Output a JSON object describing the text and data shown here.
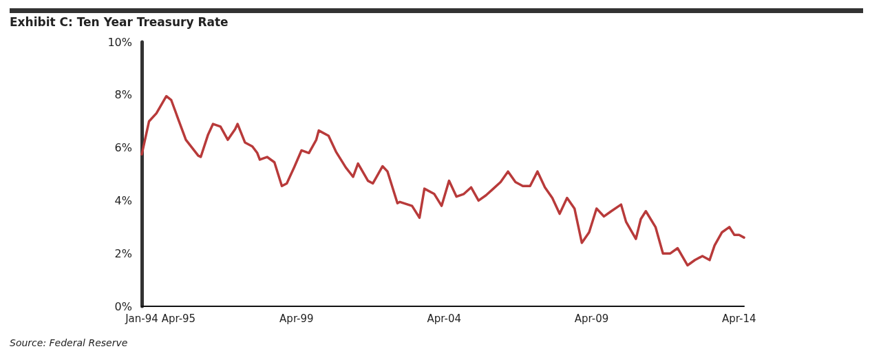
{
  "chart_data": {
    "type": "line",
    "title": "Exhibit C: Ten Year Treasury Rate",
    "annotations": [
      "Source: Federal Reserve"
    ],
    "x": [
      "1994-01",
      "1994-04",
      "1994-07",
      "1994-11",
      "1995-01",
      "1995-04",
      "1995-07",
      "1995-12",
      "1996-01",
      "1996-04",
      "1996-06",
      "1996-09",
      "1996-12",
      "1997-03",
      "1997-04",
      "1997-07",
      "1997-10",
      "1997-12",
      "1998-01",
      "1998-04",
      "1998-07",
      "1998-10",
      "1998-12",
      "1999-03",
      "1999-06",
      "1999-09",
      "1999-12",
      "2000-01",
      "2000-05",
      "2000-08",
      "2000-12",
      "2001-03",
      "2001-05",
      "2001-09",
      "2001-11",
      "2002-03",
      "2002-05",
      "2002-09",
      "2002-10",
      "2003-03",
      "2003-06",
      "2003-08",
      "2003-12",
      "2004-03",
      "2004-06",
      "2004-09",
      "2004-12",
      "2005-03",
      "2005-06",
      "2005-09",
      "2005-12",
      "2006-03",
      "2006-06",
      "2006-09",
      "2006-12",
      "2007-03",
      "2007-06",
      "2007-09",
      "2007-12",
      "2008-03",
      "2008-06",
      "2008-09",
      "2008-12",
      "2009-03",
      "2009-06",
      "2009-09",
      "2009-12",
      "2010-04",
      "2010-06",
      "2010-10",
      "2010-12",
      "2011-02",
      "2011-06",
      "2011-09",
      "2011-12",
      "2012-03",
      "2012-07",
      "2012-10",
      "2013-01",
      "2013-04",
      "2013-06",
      "2013-09",
      "2013-12",
      "2014-02",
      "2014-04",
      "2014-06"
    ],
    "series": [
      {
        "color": "#b83a3a",
        "values": [
          5.75,
          7.0,
          7.3,
          7.95,
          7.8,
          7.05,
          6.3,
          5.7,
          5.65,
          6.5,
          6.9,
          6.8,
          6.3,
          6.7,
          6.9,
          6.2,
          6.05,
          5.8,
          5.55,
          5.65,
          5.45,
          4.55,
          4.65,
          5.25,
          5.9,
          5.8,
          6.3,
          6.65,
          6.45,
          5.85,
          5.25,
          4.9,
          5.4,
          4.75,
          4.65,
          5.3,
          5.1,
          3.9,
          3.95,
          3.8,
          3.35,
          4.45,
          4.25,
          3.8,
          4.75,
          4.15,
          4.25,
          4.5,
          4.0,
          4.2,
          4.45,
          4.7,
          5.1,
          4.7,
          4.55,
          4.55,
          5.1,
          4.5,
          4.1,
          3.5,
          4.1,
          3.7,
          2.4,
          2.8,
          3.7,
          3.4,
          3.6,
          3.85,
          3.2,
          2.55,
          3.3,
          3.6,
          3.0,
          2.0,
          2.0,
          2.2,
          1.55,
          1.75,
          1.9,
          1.75,
          2.3,
          2.8,
          3.0,
          2.7,
          2.7,
          2.6
        ]
      }
    ],
    "xlim": [
      "1994-01",
      "2014-06"
    ],
    "xticks": [
      {
        "value": "1994-01",
        "label": "Jan-94"
      },
      {
        "value": "1995-04",
        "label": "Apr-95"
      },
      {
        "value": "1999-04",
        "label": "Apr-99"
      },
      {
        "value": "2004-04",
        "label": "Apr-04"
      },
      {
        "value": "2009-04",
        "label": "Apr-09"
      },
      {
        "value": "2014-04",
        "label": "Apr-14"
      }
    ],
    "ylim": [
      0,
      10
    ],
    "yticks": [
      {
        "value": 0,
        "label": "0%"
      },
      {
        "value": 2,
        "label": "2%"
      },
      {
        "value": 4,
        "label": "4%"
      },
      {
        "value": 6,
        "label": "6%"
      },
      {
        "value": 8,
        "label": "8%"
      },
      {
        "value": 10,
        "label": "10%"
      }
    ],
    "grid": false,
    "marker": "none",
    "line_style": "solid"
  }
}
